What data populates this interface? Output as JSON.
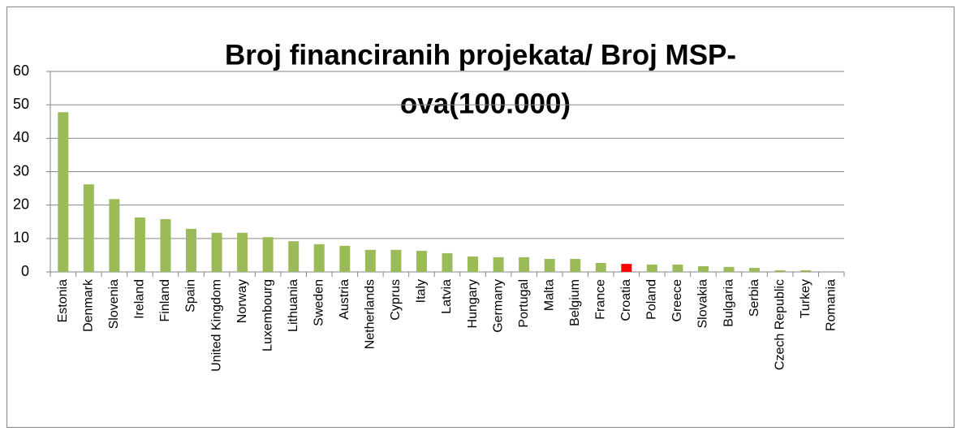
{
  "chart_data": {
    "type": "bar",
    "title": [
      "Broj financiranih projekata/ Broj MSP-",
      "ova(100.000)"
    ],
    "categories": [
      "Estonia",
      "Denmark",
      "Slovenia",
      "Ireland",
      "Finland",
      "Spain",
      "United Kingdom",
      "Norway",
      "Luxembourg",
      "Lithuania",
      "Sweden",
      "Austria",
      "Netherlands",
      "Cyprus",
      "Italy",
      "Latvia",
      "Hungary",
      "Germany",
      "Portugal",
      "Malta",
      "Belgium",
      "France",
      "Croatia",
      "Poland",
      "Greece",
      "Slovakia",
      "Bulgaria",
      "Serbia",
      "Czech Republic",
      "Turkey",
      "Romania"
    ],
    "values": [
      47.8,
      26.2,
      21.8,
      16.3,
      15.8,
      12.9,
      11.7,
      11.7,
      10.4,
      9.2,
      8.3,
      7.8,
      6.6,
      6.6,
      6.3,
      5.6,
      4.6,
      4.4,
      4.4,
      3.9,
      3.9,
      2.7,
      2.4,
      2.2,
      2.2,
      1.7,
      1.5,
      1.2,
      0.5,
      0.5,
      0
    ],
    "colors": [
      "#9bbb59",
      "#9bbb59",
      "#9bbb59",
      "#9bbb59",
      "#9bbb59",
      "#9bbb59",
      "#9bbb59",
      "#9bbb59",
      "#9bbb59",
      "#9bbb59",
      "#9bbb59",
      "#9bbb59",
      "#9bbb59",
      "#9bbb59",
      "#9bbb59",
      "#9bbb59",
      "#9bbb59",
      "#9bbb59",
      "#9bbb59",
      "#9bbb59",
      "#9bbb59",
      "#9bbb59",
      "#ff0000",
      "#9bbb59",
      "#9bbb59",
      "#9bbb59",
      "#9bbb59",
      "#9bbb59",
      "#9bbb59",
      "#9bbb59",
      "#9bbb59"
    ],
    "ylim": [
      0,
      60
    ],
    "yticks": [
      0,
      10,
      20,
      30,
      40,
      50,
      60
    ],
    "grid": true
  }
}
